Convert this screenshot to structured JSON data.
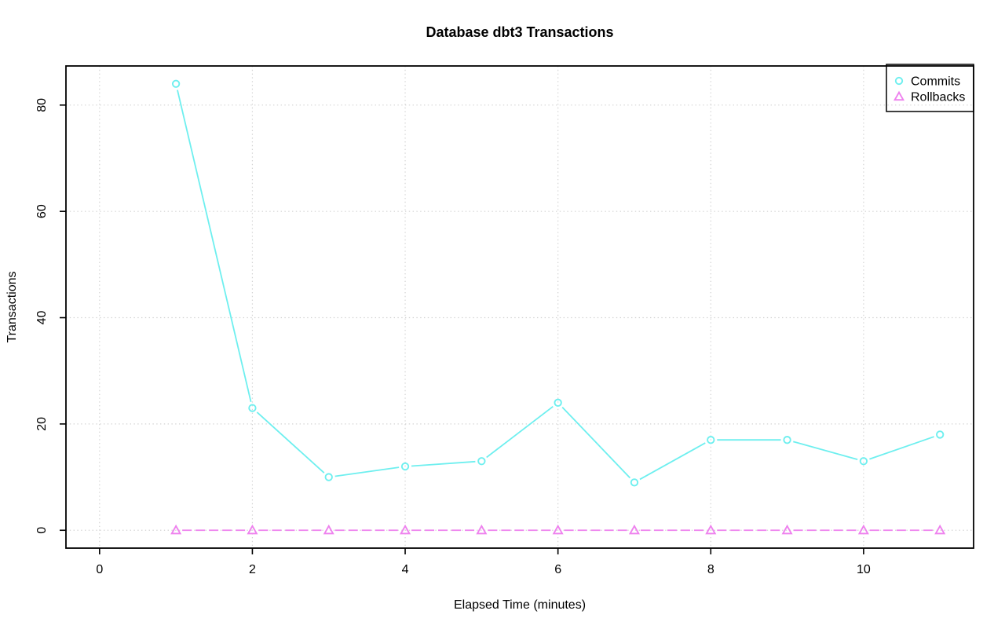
{
  "chart_data": {
    "type": "line",
    "title": "Database dbt3 Transactions",
    "xlabel": "Elapsed Time (minutes)",
    "ylabel": "Transactions",
    "x": [
      1,
      2,
      3,
      4,
      5,
      6,
      7,
      8,
      9,
      10,
      11
    ],
    "series": [
      {
        "name": "Commits",
        "marker": "circle",
        "line_style": "solid",
        "color": "#6eefef",
        "values": [
          84,
          23,
          10,
          12,
          13,
          24,
          9,
          17,
          17,
          13,
          18
        ]
      },
      {
        "name": "Rollbacks",
        "marker": "triangle",
        "line_style": "dashed",
        "color": "#ee82ee",
        "values": [
          0,
          0,
          0,
          0,
          0,
          0,
          0,
          0,
          0,
          0,
          0
        ]
      }
    ],
    "xticks": [
      0,
      2,
      4,
      6,
      8,
      10
    ],
    "yticks": [
      0,
      20,
      40,
      60,
      80
    ],
    "xlim": [
      -0.44,
      11.44
    ],
    "ylim": [
      -3.36,
      87.36
    ],
    "grid": true,
    "grid_style": "dotted",
    "grid_color": "#d3d3d3",
    "axis_color": "#000000",
    "background_color": "#ffffff",
    "legend_position": "topright"
  }
}
